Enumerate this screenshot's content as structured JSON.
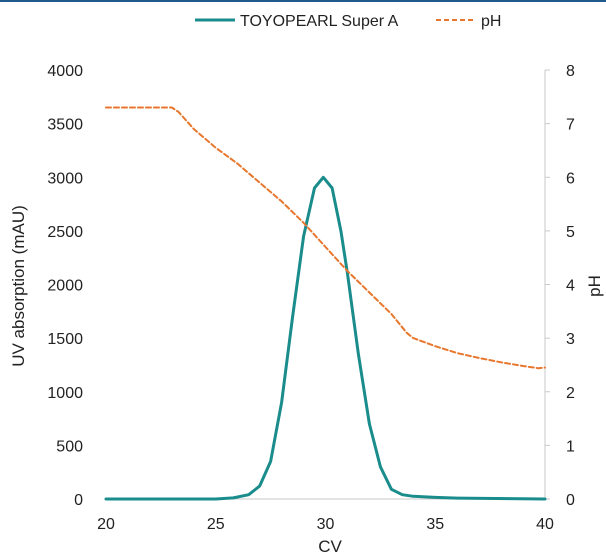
{
  "chart_data": {
    "type": "line",
    "title": "",
    "xlabel": "CV",
    "ylabel": "UV absorption (mAU)",
    "y2label": "pH",
    "xlim": [
      20,
      40
    ],
    "ylim": [
      0,
      4000
    ],
    "y2lim": [
      0,
      8
    ],
    "xticks": [
      20,
      25,
      30,
      35,
      40
    ],
    "yticks": [
      0,
      500,
      1000,
      1500,
      2000,
      2500,
      3000,
      3500,
      4000
    ],
    "y2ticks": [
      0,
      1,
      2,
      3,
      4,
      5,
      6,
      7,
      8
    ],
    "grid": false,
    "legend_position": "top-center",
    "series": [
      {
        "name": "TOYOPEARL Super A",
        "axis": "left",
        "color": "#1a8c8c",
        "style": "solid",
        "x": [
          20,
          25,
          25.8,
          26.5,
          27,
          27.5,
          28,
          28.5,
          29,
          29.5,
          29.9,
          30.3,
          30.7,
          31,
          31.5,
          32,
          32.5,
          33,
          33.5,
          34,
          35,
          36,
          40
        ],
        "y": [
          0,
          0,
          10,
          40,
          120,
          350,
          900,
          1700,
          2450,
          2900,
          3000,
          2900,
          2500,
          2100,
          1350,
          700,
          300,
          90,
          40,
          25,
          15,
          8,
          0
        ]
      },
      {
        "name": "pH",
        "axis": "right",
        "color": "#e8772e",
        "style": "dashed",
        "x": [
          20,
          23,
          23.3,
          24,
          25,
          26,
          27,
          28,
          29,
          30,
          31,
          32,
          33,
          33.7,
          34,
          35,
          36,
          37,
          38,
          39,
          39.7,
          40
        ],
        "y": [
          7.3,
          7.3,
          7.22,
          6.9,
          6.55,
          6.25,
          5.9,
          5.55,
          5.15,
          4.7,
          4.25,
          3.85,
          3.45,
          3.1,
          3.0,
          2.85,
          2.72,
          2.63,
          2.55,
          2.48,
          2.44,
          2.45
        ]
      }
    ]
  }
}
